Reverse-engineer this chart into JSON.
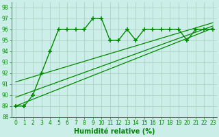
{
  "xlabel": "Humidité relative (%)",
  "bg_color": "#cceee8",
  "grid_color": "#aaccbb",
  "line_color": "#008800",
  "ylim": [
    88,
    98.5
  ],
  "xlim": [
    -0.5,
    23.5
  ],
  "yticks": [
    88,
    89,
    90,
    91,
    92,
    93,
    94,
    95,
    96,
    97,
    98
  ],
  "xticks": [
    0,
    1,
    2,
    3,
    4,
    5,
    6,
    7,
    8,
    9,
    10,
    11,
    12,
    13,
    14,
    15,
    16,
    17,
    18,
    19,
    20,
    21,
    22,
    23
  ],
  "main_x": [
    0,
    1,
    2,
    3,
    4,
    5,
    6,
    7,
    8,
    9,
    10,
    11,
    12,
    13,
    14,
    15,
    16,
    17,
    18,
    19,
    20,
    21,
    22,
    23
  ],
  "main_y": [
    89,
    89,
    90,
    92,
    94,
    96,
    96,
    96,
    96,
    97,
    97,
    95,
    95,
    96,
    95,
    96,
    96,
    96,
    96,
    96,
    95,
    96,
    96,
    96
  ],
  "line2_x": [
    0,
    23
  ],
  "line2_y": [
    89.0,
    96.1
  ],
  "line3_x": [
    0,
    23
  ],
  "line3_y": [
    89.8,
    96.3
  ],
  "line4_x": [
    0,
    23
  ],
  "line4_y": [
    91.2,
    96.6
  ]
}
